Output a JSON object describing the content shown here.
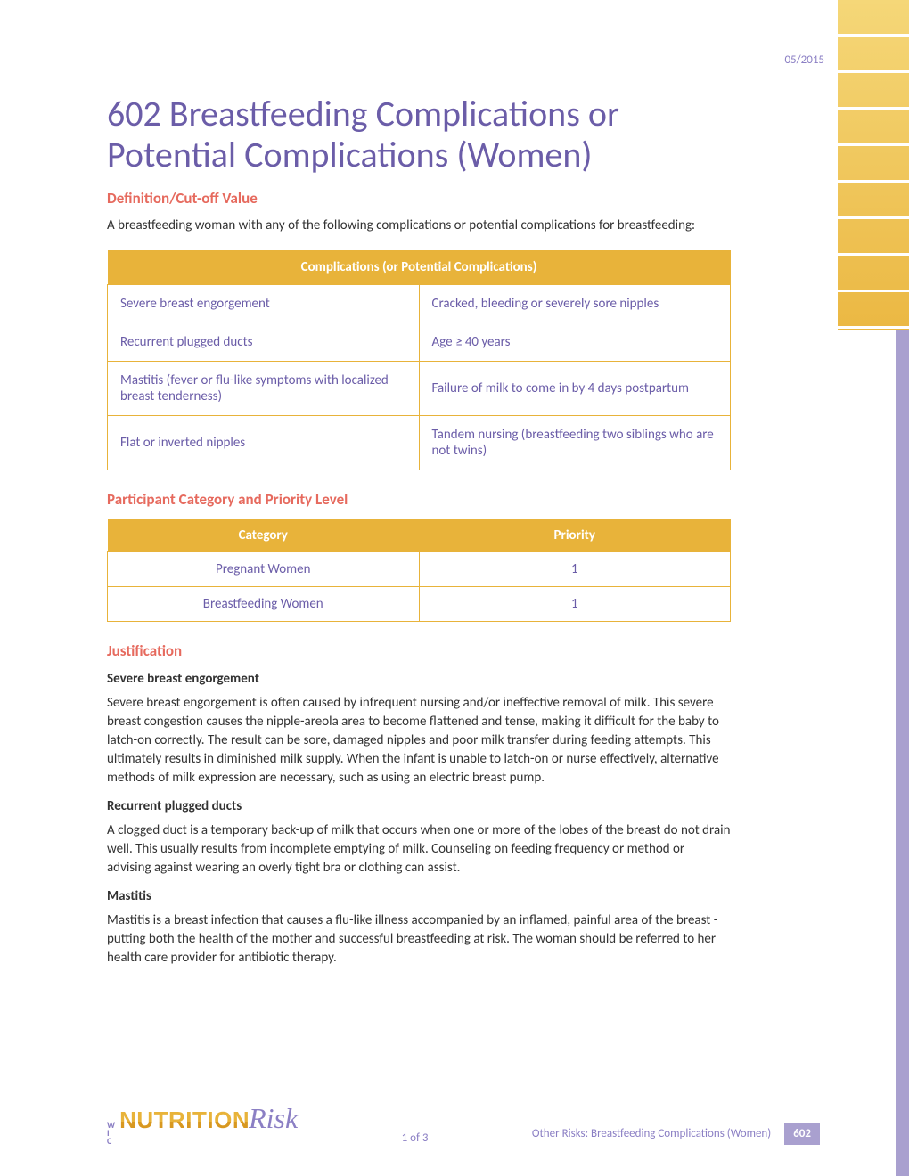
{
  "date": "05/2015",
  "title": "602 Breastfeeding Complications or Potential Complications (Women)",
  "sections": {
    "definition": {
      "heading": "Definition/Cut-off Value",
      "intro": "A breastfeeding woman with any of the following complications or potential complications for breastfeeding:"
    },
    "complications_table": {
      "header": "Complications  (or Potential Complications)",
      "rows": [
        [
          "Severe breast engorgement",
          "Cracked, bleeding or severely sore nipples"
        ],
        [
          "Recurrent plugged ducts",
          "Age ≥ 40 years"
        ],
        [
          "Mastitis (fever or flu-like symptoms with localized breast tenderness)",
          "Failure of milk to come in by 4 days postpartum"
        ],
        [
          "Flat or inverted nipples",
          "Tandem nursing (breastfeeding two siblings who are not twins)"
        ]
      ]
    },
    "priority": {
      "heading": "Participant Category and Priority Level",
      "headers": [
        "Category",
        "Priority"
      ],
      "rows": [
        [
          "Pregnant Women",
          "1"
        ],
        [
          "Breastfeeding Women",
          "1"
        ]
      ]
    },
    "justification": {
      "heading": "Justification",
      "items": [
        {
          "sub": "Severe breast engorgement",
          "text": "Severe breast engorgement is often caused by infrequent nursing and/or ineffective removal of milk. This severe breast congestion causes the nipple-areola area to become flattened and tense, making it difficult for the baby to latch-on correctly. The result can be sore, damaged nipples and poor milk transfer during feeding attempts. This ultimately results in diminished milk supply. When the infant is unable to latch-on or nurse effectively, alternative methods of milk expression are necessary, such as using an electric breast pump."
        },
        {
          "sub": "Recurrent plugged ducts",
          "text": "A clogged duct is a temporary back-up of milk that occurs when one or more of the lobes of the breast do not drain well. This usually results from incomplete emptying of milk. Counseling on feeding frequency or method or advising against wearing an overly tight bra or clothing can assist."
        },
        {
          "sub": "Mastitis",
          "text": "Mastitis is a breast infection that causes a flu-like illness accompanied by an inflamed, painful area of the breast - putting both the health of the mother and successful breastfeeding at risk. The woman should be referred to her health care provider for antibiotic therapy."
        }
      ]
    }
  },
  "footer": {
    "logo": {
      "wic": "WIC",
      "nutrition": "NUTRITION",
      "risk": "Risk"
    },
    "page": "1 of 3",
    "category": "Other Risks: Breastfeeding Complications (Women)",
    "code": "602"
  },
  "colors": {
    "purple": "#6b5da8",
    "light_purple": "#a9a0cf",
    "text_purple": "#8b7fc4",
    "coral": "#e66a5e",
    "gold": "#e8b33a",
    "body": "#333333"
  }
}
